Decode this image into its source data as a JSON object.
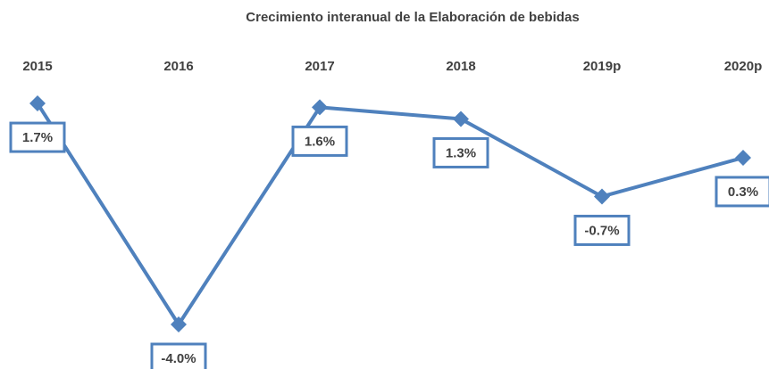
{
  "chart_data": {
    "type": "line",
    "title": "Crecimiento interanual de la Elaboración de bebidas",
    "categories": [
      "2015",
      "2016",
      "2017",
      "2018",
      "2019p",
      "2020p"
    ],
    "series": [
      {
        "name": "Crecimiento interanual",
        "color": "#4f81bd",
        "values": [
          1.7,
          -4.0,
          1.6,
          1.3,
          -0.7,
          0.3
        ],
        "value_labels": [
          "1.7%",
          "-4.0%",
          "1.6%",
          "1.3%",
          "-0.7%",
          "0.3%"
        ]
      }
    ],
    "ylim": [
      -5,
      2
    ]
  }
}
